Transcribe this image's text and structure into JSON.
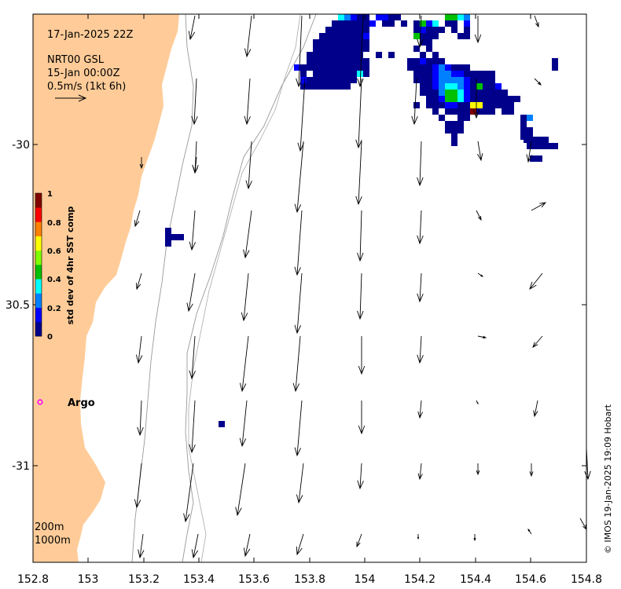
{
  "map": {
    "date_label": "17-Jan-2025 22Z",
    "product_lines": [
      "NRT00 GSL",
      "15-Jan 00:00Z",
      "0.5m/s (1kt 6h)"
    ],
    "colorbar": {
      "label": "std dev of 4hr SST comp",
      "ticks": [
        "1",
        "0.8",
        "0.6",
        "0.4",
        "0.2",
        "0"
      ],
      "colors": [
        "#00008b",
        "#0000ff",
        "#0080ff",
        "#00ffff",
        "#00c000",
        "#80ff00",
        "#ffff00",
        "#ff8000",
        "#ff0000",
        "#800000"
      ]
    },
    "argo_label": "Argo",
    "argo_color": "#ff00ff",
    "land_color": "#ffcc99",
    "isobath_labels": [
      "200m",
      "1000m"
    ],
    "credit": "© IMOS 19-Jan-2025 19:09 Hobart",
    "x_ticks": [
      "152.8",
      "153",
      "153.2",
      "153.4",
      "153.6",
      "153.8",
      "154",
      "154.2",
      "154.4",
      "154.6",
      "154.8"
    ],
    "y_ticks": [
      "-30",
      "30.5",
      "-31"
    ]
  }
}
